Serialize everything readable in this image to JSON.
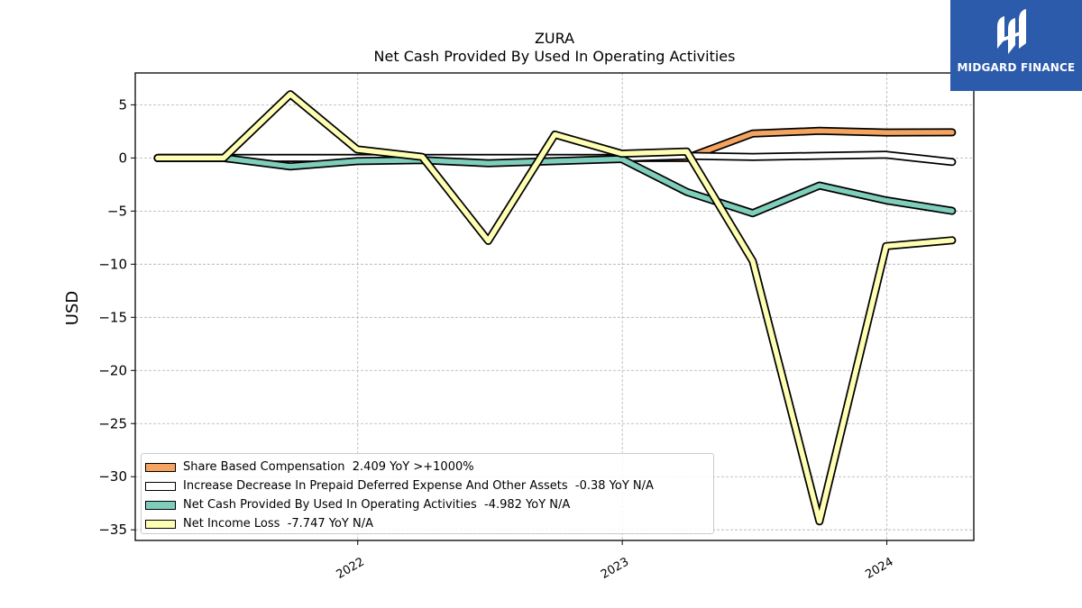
{
  "brand": {
    "name": "MIDGARD FINANCE",
    "background": "#2d5bab",
    "icon": "midgard-logo-icon"
  },
  "chart_data": {
    "type": "line",
    "title": "ZURA",
    "subtitle": "Net Cash Provided By Used In Operating Activities",
    "ylabel": "USD",
    "xlabel": "",
    "ylim": [
      -36,
      8
    ],
    "xlim": [
      "2021-02-28",
      "2024-04-30"
    ],
    "yticks": [
      5,
      0,
      -5,
      -10,
      -15,
      -20,
      -25,
      -30,
      -35
    ],
    "ytick_labels": [
      "5",
      "0",
      "−5",
      "−10",
      "−15",
      "−20",
      "−25",
      "−30",
      "−35"
    ],
    "xticks": [
      "2022-01-01",
      "2023-01-01",
      "2024-01-01"
    ],
    "xtick_labels": [
      "2022",
      "2023",
      "2024"
    ],
    "grid": true,
    "legend_position": "bottom-left",
    "x": [
      "2021-03-31",
      "2021-06-30",
      "2021-09-30",
      "2021-12-31",
      "2022-03-31",
      "2022-06-30",
      "2022-09-30",
      "2022-12-31",
      "2023-03-31",
      "2023-06-30",
      "2023-09-30",
      "2023-12-31",
      "2024-03-31"
    ],
    "series": [
      {
        "name": "Share Based Compensation",
        "legend": "Share Based Compensation  2.409 YoY >+1000%",
        "color": "#f4a460",
        "values": [
          0,
          0,
          0,
          0,
          0,
          0,
          0,
          0,
          0,
          2.3,
          2.55,
          2.4,
          2.41
        ]
      },
      {
        "name": "Increase Decrease In Prepaid Deferred Expense And Other Assets",
        "legend": "Increase Decrease In Prepaid Deferred Expense And Other Assets  -0.38 YoY N/A",
        "color": "#ffffff",
        "values": [
          0,
          0,
          0,
          0,
          0,
          0,
          0,
          0,
          0.2,
          0.1,
          0.2,
          0.3,
          -0.38
        ]
      },
      {
        "name": "Net Cash Provided By Used In Operating Activities",
        "legend": "Net Cash Provided By Used In Operating Activities  -4.982 YoY N/A",
        "color": "#7fcdbb",
        "values": [
          0,
          0,
          -0.8,
          -0.3,
          -0.2,
          -0.5,
          -0.3,
          -0.1,
          -3.2,
          -5.2,
          -2.6,
          -4.0,
          -4.98
        ]
      },
      {
        "name": "Net Income Loss",
        "legend": "Net Income Loss  -7.747 YoY N/A",
        "color": "#ffffb3",
        "values": [
          0,
          0,
          6.0,
          0.8,
          0.1,
          -7.8,
          2.2,
          0.4,
          0.6,
          -9.7,
          -34.2,
          -8.3,
          -7.75
        ]
      }
    ]
  }
}
